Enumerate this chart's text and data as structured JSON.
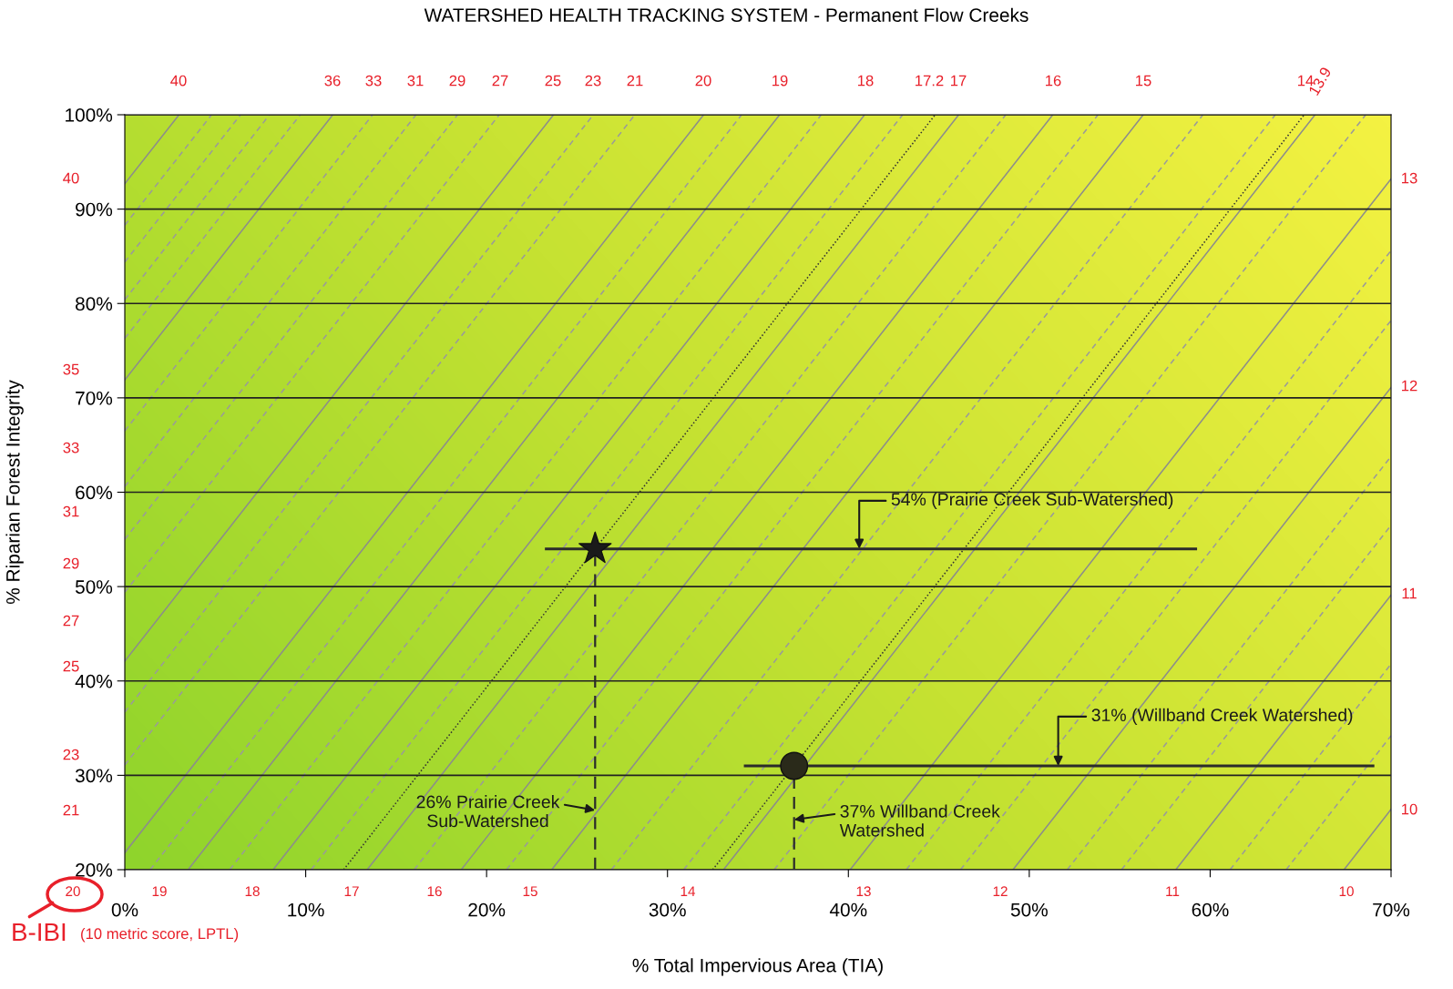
{
  "chart_data": {
    "type": "scatter",
    "title": "WATERSHED HEALTH TRACKING SYSTEM - Permanent Flow Creeks",
    "xlabel": "% Total Impervious Area (TIA)",
    "ylabel": "% Riparian Forest Integrity",
    "xlim": [
      0,
      70
    ],
    "xticks": [
      {
        "value": 0,
        "label": "0%"
      },
      {
        "value": 10,
        "label": "10%"
      },
      {
        "value": 20,
        "label": "20%"
      },
      {
        "value": 30,
        "label": "30%"
      },
      {
        "value": 40,
        "label": "40%"
      },
      {
        "value": 50,
        "label": "50%"
      },
      {
        "value": 60,
        "label": "60%"
      },
      {
        "value": 70,
        "label": "70%"
      }
    ],
    "ylim": [
      20,
      100
    ],
    "yticks": [
      {
        "value": 20,
        "label": "20%"
      },
      {
        "value": 30,
        "label": "30%"
      },
      {
        "value": 40,
        "label": "40%"
      },
      {
        "value": 50,
        "label": "50%"
      },
      {
        "value": 60,
        "label": "60%"
      },
      {
        "value": 70,
        "label": "70%"
      },
      {
        "value": 80,
        "label": "80%"
      },
      {
        "value": 90,
        "label": "90%"
      },
      {
        "value": 100,
        "label": "100%"
      }
    ],
    "grid": "y",
    "series": [
      {
        "type": "line",
        "line_style": "solid",
        "color": "#8c8c8c",
        "x": [
          0,
          3.0
        ],
        "values": [
          92.7,
          100
        ]
      },
      {
        "type": "line",
        "line_style": "dashed",
        "color": "#9a9a9a",
        "x": [
          0,
          4.8
        ],
        "values": [
          88.3,
          100
        ]
      },
      {
        "type": "line",
        "line_style": "dashed",
        "color": "#9a9a9a",
        "x": [
          0,
          6.4
        ],
        "values": [
          84.4,
          100
        ]
      },
      {
        "type": "line",
        "line_style": "dashed",
        "color": "#9a9a9a",
        "x": [
          0,
          8.0
        ],
        "values": [
          80.4,
          100
        ]
      },
      {
        "type": "line",
        "line_style": "dashed",
        "color": "#9a9a9a",
        "x": [
          0,
          9.7
        ],
        "values": [
          76.3,
          100
        ]
      },
      {
        "type": "line",
        "line_style": "solid",
        "color": "#8c8c8c",
        "x": [
          0,
          11.5
        ],
        "values": [
          71.9,
          100
        ]
      },
      {
        "type": "line",
        "line_style": "dashed",
        "color": "#9a9a9a",
        "x": [
          0,
          13.7
        ],
        "values": [
          66.5,
          100
        ]
      },
      {
        "type": "line",
        "line_style": "dashed",
        "color": "#9a9a9a",
        "x": [
          0,
          16.1
        ],
        "values": [
          60.6,
          100
        ]
      },
      {
        "type": "line",
        "line_style": "dashed",
        "color": "#9a9a9a",
        "x": [
          0,
          18.4
        ],
        "values": [
          55.0,
          100
        ]
      },
      {
        "type": "line",
        "line_style": "dashed",
        "color": "#9a9a9a",
        "x": [
          0,
          20.7
        ],
        "values": [
          49.4,
          100
        ]
      },
      {
        "type": "line",
        "line_style": "solid",
        "color": "#8c8c8c",
        "x": [
          0,
          23.7
        ],
        "values": [
          42.1,
          100
        ]
      },
      {
        "type": "line",
        "line_style": "dashed",
        "color": "#9a9a9a",
        "x": [
          0,
          25.9
        ],
        "values": [
          36.7,
          100
        ]
      },
      {
        "type": "line",
        "line_style": "dashed",
        "color": "#9a9a9a",
        "x": [
          0,
          28.2
        ],
        "values": [
          31.1,
          100
        ]
      },
      {
        "type": "line",
        "line_style": "solid",
        "color": "#8c8c8c",
        "x": [
          0,
          32.0
        ],
        "values": [
          21.8,
          100
        ]
      },
      {
        "type": "line",
        "line_style": "dashed",
        "color": "#9a9a9a",
        "x": [
          1.4,
          34.1
        ],
        "values": [
          20,
          100
        ]
      },
      {
        "type": "line",
        "line_style": "solid",
        "color": "#8c8c8c",
        "x": [
          3.5,
          36.2
        ],
        "values": [
          20,
          100
        ]
      },
      {
        "type": "line",
        "line_style": "dashed",
        "color": "#9a9a9a",
        "x": [
          5.8,
          38.5
        ],
        "values": [
          20,
          100
        ]
      },
      {
        "type": "line",
        "line_style": "solid",
        "color": "#8c8c8c",
        "x": [
          8.2,
          40.9
        ],
        "values": [
          20,
          100
        ]
      },
      {
        "type": "line",
        "line_style": "dashed",
        "color": "#9a9a9a",
        "x": [
          10.3,
          43.0
        ],
        "values": [
          20,
          100
        ]
      },
      {
        "type": "line",
        "line_style": "dotted",
        "color": "#333333",
        "x": [
          12.1,
          44.8
        ],
        "values": [
          20,
          100
        ]
      },
      {
        "type": "line",
        "line_style": "solid",
        "color": "#8c8c8c",
        "x": [
          13.4,
          46.1
        ],
        "values": [
          20,
          100
        ]
      },
      {
        "type": "line",
        "line_style": "dashed",
        "color": "#9a9a9a",
        "x": [
          16.0,
          48.7
        ],
        "values": [
          20,
          100
        ]
      },
      {
        "type": "line",
        "line_style": "solid",
        "color": "#8c8c8c",
        "x": [
          18.6,
          51.3
        ],
        "values": [
          20,
          100
        ]
      },
      {
        "type": "line",
        "line_style": "dashed",
        "color": "#9a9a9a",
        "x": [
          21.1,
          53.8
        ],
        "values": [
          20,
          100
        ]
      },
      {
        "type": "line",
        "line_style": "solid",
        "color": "#8c8c8c",
        "x": [
          23.6,
          56.3
        ],
        "values": [
          20,
          100
        ]
      },
      {
        "type": "line",
        "line_style": "dashed",
        "color": "#9a9a9a",
        "x": [
          26.9,
          59.6
        ],
        "values": [
          20,
          100
        ]
      },
      {
        "type": "line",
        "line_style": "dashed",
        "color": "#9a9a9a",
        "x": [
          30.9,
          63.6
        ],
        "values": [
          20,
          100
        ]
      },
      {
        "type": "line",
        "line_style": "dotted",
        "color": "#333333",
        "x": [
          32.5,
          65.2
        ],
        "values": [
          20,
          100
        ]
      },
      {
        "type": "line",
        "line_style": "solid",
        "color": "#8c8c8c",
        "x": [
          33.1,
          65.8
        ],
        "values": [
          20,
          100
        ]
      },
      {
        "type": "line",
        "line_style": "dashed",
        "color": "#9a9a9a",
        "x": [
          35.9,
          68.6
        ],
        "values": [
          20,
          100
        ]
      },
      {
        "type": "line",
        "line_style": "solid",
        "color": "#8c8c8c",
        "x": [
          40.1,
          70
        ],
        "values": [
          20,
          93.2
        ]
      },
      {
        "type": "line",
        "line_style": "dashed",
        "color": "#9a9a9a",
        "x": [
          43.2,
          70
        ],
        "values": [
          20,
          85.6
        ]
      },
      {
        "type": "line",
        "line_style": "dashed",
        "color": "#9a9a9a",
        "x": [
          46.2,
          70
        ],
        "values": [
          20,
          78.2
        ]
      },
      {
        "type": "line",
        "line_style": "solid",
        "color": "#8c8c8c",
        "x": [
          49.1,
          70
        ],
        "values": [
          20,
          71.1
        ]
      },
      {
        "type": "line",
        "line_style": "dashed",
        "color": "#9a9a9a",
        "x": [
          52.1,
          70
        ],
        "values": [
          20,
          63.8
        ]
      },
      {
        "type": "line",
        "line_style": "dashed",
        "color": "#9a9a9a",
        "x": [
          55.1,
          70
        ],
        "values": [
          20,
          56.5
        ]
      },
      {
        "type": "line",
        "line_style": "solid",
        "color": "#8c8c8c",
        "x": [
          58.1,
          70
        ],
        "values": [
          20,
          49.1
        ]
      },
      {
        "type": "line",
        "line_style": "dashed",
        "color": "#9a9a9a",
        "x": [
          61.1,
          70
        ],
        "values": [
          20,
          41.8
        ]
      },
      {
        "type": "line",
        "line_style": "dashed",
        "color": "#9a9a9a",
        "x": [
          64.2,
          70
        ],
        "values": [
          20,
          34.2
        ]
      },
      {
        "type": "line",
        "line_style": "solid",
        "color": "#8c8c8c",
        "x": [
          67.4,
          70
        ],
        "values": [
          20,
          26.4
        ]
      },
      {
        "marker": "star",
        "color": "#1a1a1a",
        "x": [
          26
        ],
        "values": [
          54
        ],
        "xerrors": [
          [
            23.3,
            59.2
          ]
        ],
        "errors": [
          [
            20,
            54
          ]
        ]
      },
      {
        "marker": "circle",
        "color": "#2a2a1a",
        "x": [
          37
        ],
        "values": [
          31
        ],
        "xerrors": [
          [
            34.3,
            69.0
          ]
        ],
        "errors": [
          [
            20,
            31
          ]
        ]
      }
    ],
    "annotations": [
      {
        "text": "54% (Prairie Creek Sub-Watershed)",
        "x": 40.6,
        "y": 54
      },
      {
        "text": "31% (Willband Creek Watershed)",
        "x": 51.6,
        "y": 31
      },
      {
        "text": "26% Prairie Creek\nSub-Watershed",
        "x": 26,
        "y": 26.3
      },
      {
        "text": "37% Willband Creek\nWatershed",
        "x": 37,
        "y": 25.3
      },
      "40",
      "36",
      "33",
      "31",
      "29",
      "27",
      "25",
      "23",
      "21",
      "20",
      "19",
      "18",
      "17.2",
      "17",
      "16",
      "15",
      "14",
      "13.9",
      "40",
      "35",
      "33",
      "31",
      "29",
      "27",
      "25",
      "23",
      "21",
      "13",
      "12",
      "11",
      "10",
      "20",
      "19",
      "18",
      "17",
      "16",
      "15",
      "14",
      "13",
      "12",
      "11",
      "10",
      "B-IBI",
      "(10 metric score, LPTL)"
    ]
  }
}
